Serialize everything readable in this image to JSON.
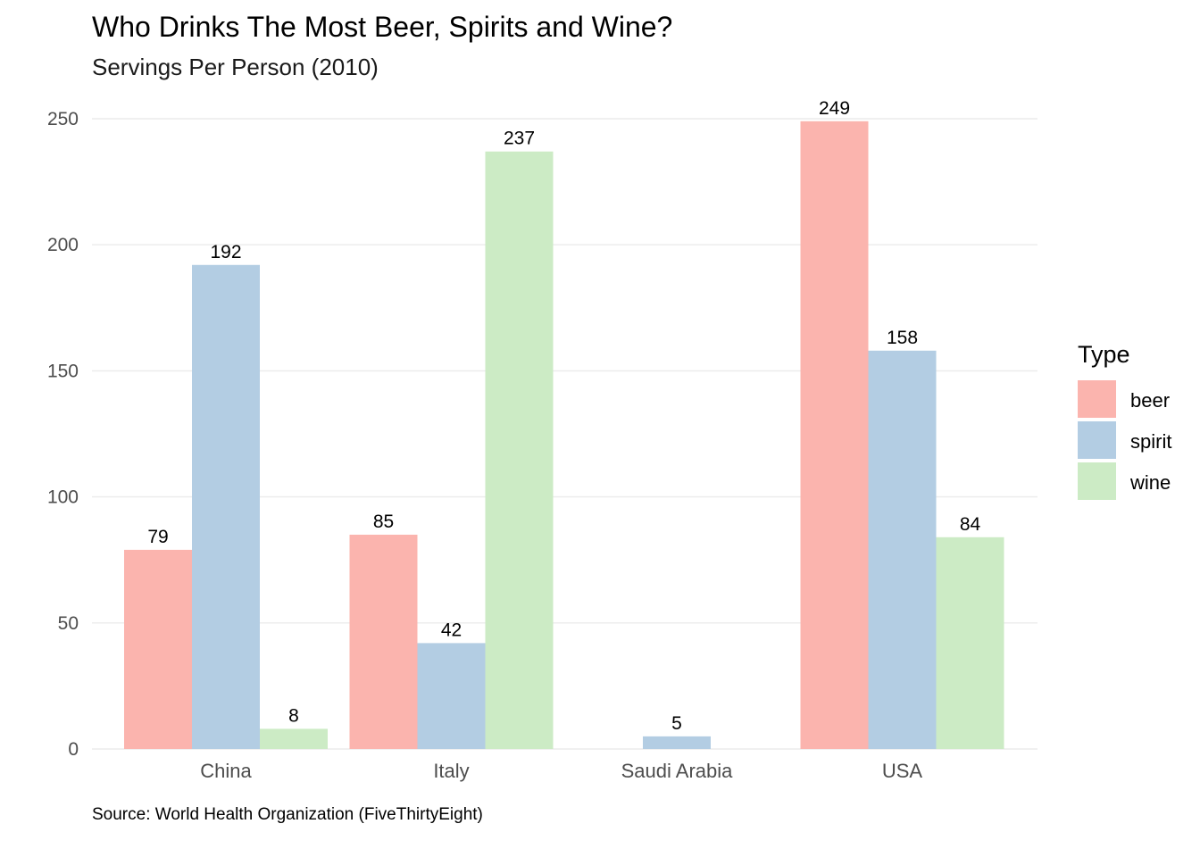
{
  "chart_data": {
    "type": "bar",
    "title": "Who Drinks The Most Beer, Spirits and Wine?",
    "subtitle": "Servings Per Person (2010)",
    "caption": "Source: World Health Organization (FiveThirtyEight)",
    "xlabel": "",
    "ylabel": "",
    "ylim": [
      0,
      250
    ],
    "yticks": [
      "0",
      "50",
      "100",
      "150",
      "200",
      "250"
    ],
    "ytick_values": [
      0,
      50,
      100,
      150,
      200,
      250
    ],
    "grid": true,
    "legend": {
      "title": "Type",
      "position": "right"
    },
    "categories": [
      "China",
      "Italy",
      "Saudi Arabia",
      "USA"
    ],
    "series": [
      {
        "name": "beer",
        "color": "#FBB4AE",
        "values": [
          79,
          85,
          0,
          249
        ]
      },
      {
        "name": "spirit",
        "color": "#B3CDE3",
        "values": [
          192,
          42,
          5,
          158
        ]
      },
      {
        "name": "wine",
        "color": "#CCEBC5",
        "values": [
          8,
          237,
          0,
          84
        ]
      }
    ]
  }
}
